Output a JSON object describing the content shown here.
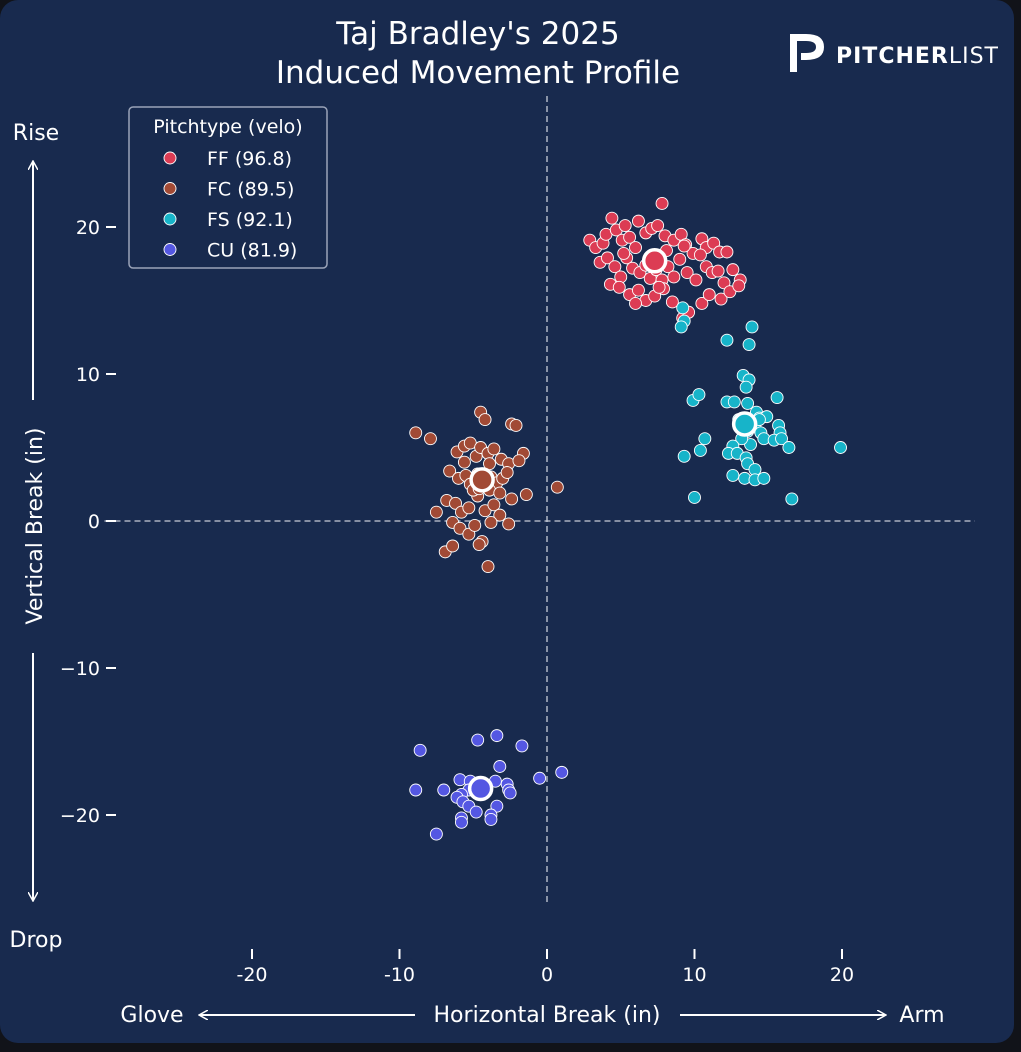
{
  "header": {
    "title_line1": "Taj Bradley's 2025",
    "title_line2": "Induced Movement Profile"
  },
  "logo": {
    "icon": "pitcherlist-p-icon",
    "text_bold": "PITCHER",
    "text_light": "LIST"
  },
  "colors": {
    "background": "#182a4e",
    "FF": "#dc3c54",
    "FC": "#a14a35",
    "FS": "#17b4c9",
    "CU": "#5457e2"
  },
  "chart_data": {
    "type": "scatter",
    "title": "Taj Bradley's 2025 Induced Movement Profile",
    "xlabel": "Horizontal Break (in)",
    "ylabel": "Vertical Break (in)",
    "x_left_word": "Glove",
    "x_right_word": "Arm",
    "y_top_word": "Rise",
    "y_bottom_word": "Drop",
    "xlim": [
      -30,
      29
    ],
    "ylim": [
      -26,
      28
    ],
    "x_ticks": [
      "-20",
      "-10",
      "0",
      "10",
      "20"
    ],
    "y_ticks": [
      "20",
      "10",
      "0",
      "−10",
      "−20"
    ],
    "reference_lines": {
      "x": 0,
      "y": 0,
      "style": "dashed"
    },
    "legend": {
      "title": "Pitchtype (velo)",
      "position": "top-left",
      "entries": [
        "FF (96.8)",
        "FC (89.5)",
        "FS (92.1)",
        "CU (81.9)"
      ]
    },
    "series": [
      {
        "name": "FF (96.8)",
        "pitch": "FF",
        "mean": [
          7.3,
          17.7
        ],
        "points": [
          [
            2.9,
            19.1
          ],
          [
            3.3,
            18.6
          ],
          [
            3.8,
            18.9
          ],
          [
            4.0,
            19.5
          ],
          [
            4.4,
            20.6
          ],
          [
            4.7,
            19.8
          ],
          [
            5.1,
            19.1
          ],
          [
            5.3,
            20.1
          ],
          [
            5.6,
            19.3
          ],
          [
            6.2,
            20.4
          ],
          [
            6.7,
            19.6
          ],
          [
            7.1,
            19.9
          ],
          [
            7.5,
            20.1
          ],
          [
            7.8,
            21.6
          ],
          [
            8.0,
            19.4
          ],
          [
            8.6,
            19.1
          ],
          [
            9.1,
            19.5
          ],
          [
            9.4,
            18.8
          ],
          [
            9.9,
            18.2
          ],
          [
            10.5,
            19.2
          ],
          [
            10.8,
            18.6
          ],
          [
            11.3,
            18.9
          ],
          [
            11.7,
            18.3
          ],
          [
            3.6,
            17.6
          ],
          [
            4.1,
            17.9
          ],
          [
            4.6,
            17.3
          ],
          [
            5.0,
            16.6
          ],
          [
            5.4,
            17.9
          ],
          [
            5.8,
            17.2
          ],
          [
            6.3,
            16.9
          ],
          [
            6.7,
            17.4
          ],
          [
            7.0,
            16.5
          ],
          [
            7.4,
            17.1
          ],
          [
            7.8,
            16.4
          ],
          [
            8.2,
            17.3
          ],
          [
            8.6,
            16.6
          ],
          [
            9.0,
            17.8
          ],
          [
            9.5,
            16.9
          ],
          [
            10.1,
            16.4
          ],
          [
            10.8,
            17.3
          ],
          [
            11.2,
            16.9
          ],
          [
            12.0,
            16.2
          ],
          [
            12.6,
            17.1
          ],
          [
            13.1,
            16.4
          ],
          [
            4.3,
            16.1
          ],
          [
            4.9,
            15.9
          ],
          [
            5.6,
            15.4
          ],
          [
            6.2,
            15.7
          ],
          [
            6.7,
            15.0
          ],
          [
            7.3,
            15.3
          ],
          [
            7.9,
            15.8
          ],
          [
            8.5,
            14.9
          ],
          [
            9.2,
            13.8
          ],
          [
            9.6,
            14.2
          ],
          [
            10.5,
            14.8
          ],
          [
            11.0,
            15.4
          ],
          [
            11.8,
            15.1
          ],
          [
            12.4,
            15.6
          ],
          [
            13.0,
            16.0
          ],
          [
            6.0,
            14.8
          ],
          [
            7.6,
            15.9
          ],
          [
            8.1,
            18.4
          ],
          [
            9.3,
            18.7
          ],
          [
            10.4,
            18.1
          ],
          [
            11.6,
            17.0
          ],
          [
            12.2,
            18.3
          ],
          [
            5.2,
            18.2
          ],
          [
            6.0,
            18.6
          ]
        ]
      },
      {
        "name": "FC (89.5)",
        "pitch": "FC",
        "mean": [
          -4.4,
          2.8
        ],
        "points": [
          [
            -8.9,
            6.0
          ],
          [
            -7.9,
            5.6
          ],
          [
            -4.5,
            7.4
          ],
          [
            -4.2,
            6.9
          ],
          [
            -2.4,
            6.6
          ],
          [
            -2.1,
            6.5
          ],
          [
            -6.1,
            4.7
          ],
          [
            -5.6,
            5.1
          ],
          [
            -5.2,
            5.3
          ],
          [
            -4.8,
            4.4
          ],
          [
            -4.5,
            5.0
          ],
          [
            -4.0,
            4.6
          ],
          [
            -3.6,
            4.9
          ],
          [
            -3.1,
            4.2
          ],
          [
            -2.6,
            3.9
          ],
          [
            -1.6,
            4.6
          ],
          [
            -1.9,
            4.1
          ],
          [
            -6.6,
            3.4
          ],
          [
            -6.0,
            2.9
          ],
          [
            -5.5,
            3.1
          ],
          [
            -5.2,
            2.5
          ],
          [
            -4.7,
            3.2
          ],
          [
            -4.2,
            2.6
          ],
          [
            -3.8,
            3.0
          ],
          [
            -3.4,
            2.6
          ],
          [
            -3.0,
            2.9
          ],
          [
            -2.7,
            3.3
          ],
          [
            -6.8,
            1.4
          ],
          [
            -6.2,
            1.2
          ],
          [
            -5.8,
            0.6
          ],
          [
            -5.3,
            0.9
          ],
          [
            -4.7,
            1.7
          ],
          [
            -4.2,
            0.7
          ],
          [
            -3.6,
            1.1
          ],
          [
            -3.2,
            0.4
          ],
          [
            -2.4,
            1.5
          ],
          [
            -1.4,
            1.8
          ],
          [
            -7.5,
            0.6
          ],
          [
            -6.4,
            -0.1
          ],
          [
            -5.9,
            -0.5
          ],
          [
            -5.3,
            -0.9
          ],
          [
            -4.9,
            -0.3
          ],
          [
            -4.4,
            -1.4
          ],
          [
            -3.8,
            -0.1
          ],
          [
            -2.6,
            -0.2
          ],
          [
            -6.9,
            -2.1
          ],
          [
            -6.4,
            -1.7
          ],
          [
            -4.6,
            -1.6
          ],
          [
            -4.0,
            -3.1
          ],
          [
            0.7,
            2.3
          ],
          [
            -5.0,
            2.1
          ],
          [
            -3.9,
            2.1
          ],
          [
            -3.2,
            1.9
          ],
          [
            -5.6,
            4.0
          ],
          [
            -3.9,
            3.9
          ],
          [
            -4.6,
            2.2
          ]
        ]
      },
      {
        "name": "FS (92.1)",
        "pitch": "FS",
        "mean": [
          13.4,
          6.6
        ],
        "points": [
          [
            9.2,
            14.5
          ],
          [
            9.3,
            13.6
          ],
          [
            9.1,
            13.2
          ],
          [
            12.2,
            12.3
          ],
          [
            13.9,
            13.2
          ],
          [
            13.7,
            12.0
          ],
          [
            13.3,
            9.9
          ],
          [
            13.7,
            9.6
          ],
          [
            13.5,
            9.1
          ],
          [
            9.9,
            8.2
          ],
          [
            10.3,
            8.6
          ],
          [
            12.2,
            8.1
          ],
          [
            12.7,
            8.1
          ],
          [
            13.6,
            8.0
          ],
          [
            14.2,
            7.4
          ],
          [
            14.4,
            7.0
          ],
          [
            15.6,
            8.4
          ],
          [
            14.9,
            7.1
          ],
          [
            15.7,
            6.5
          ],
          [
            15.8,
            6.0
          ],
          [
            14.1,
            6.4
          ],
          [
            13.6,
            6.1
          ],
          [
            14.5,
            6.0
          ],
          [
            14.7,
            5.6
          ],
          [
            15.4,
            5.5
          ],
          [
            15.9,
            5.6
          ],
          [
            16.4,
            5.0
          ],
          [
            13.8,
            5.2
          ],
          [
            13.2,
            5.6
          ],
          [
            12.6,
            5.1
          ],
          [
            12.3,
            4.6
          ],
          [
            12.9,
            4.6
          ],
          [
            13.5,
            4.3
          ],
          [
            10.7,
            5.6
          ],
          [
            10.4,
            4.8
          ],
          [
            9.3,
            4.4
          ],
          [
            13.6,
            3.9
          ],
          [
            14.1,
            3.5
          ],
          [
            12.6,
            3.1
          ],
          [
            13.4,
            2.9
          ],
          [
            14.1,
            2.8
          ],
          [
            14.7,
            2.9
          ],
          [
            10.0,
            1.6
          ],
          [
            16.6,
            1.5
          ],
          [
            19.9,
            5.0
          ],
          [
            14.4,
            6.9
          ],
          [
            13.0,
            6.9
          ]
        ]
      },
      {
        "name": "CU (81.9)",
        "pitch": "CU",
        "mean": [
          -4.5,
          -18.2
        ],
        "points": [
          [
            -8.6,
            -15.6
          ],
          [
            -4.7,
            -14.9
          ],
          [
            -3.4,
            -14.6
          ],
          [
            -1.7,
            -15.3
          ],
          [
            -3.2,
            -16.7
          ],
          [
            -0.5,
            -17.5
          ],
          [
            1.0,
            -17.1
          ],
          [
            -5.9,
            -17.6
          ],
          [
            -5.2,
            -17.7
          ],
          [
            -3.5,
            -17.7
          ],
          [
            -2.7,
            -17.9
          ],
          [
            -8.9,
            -18.3
          ],
          [
            -7.0,
            -18.3
          ],
          [
            -5.3,
            -18.3
          ],
          [
            -5.8,
            -18.6
          ],
          [
            -2.6,
            -18.3
          ],
          [
            -2.5,
            -18.5
          ],
          [
            -6.1,
            -18.8
          ],
          [
            -5.7,
            -19.1
          ],
          [
            -5.3,
            -19.4
          ],
          [
            -3.4,
            -19.4
          ],
          [
            -4.8,
            -19.8
          ],
          [
            -3.8,
            -20.0
          ],
          [
            -5.8,
            -20.2
          ],
          [
            -5.8,
            -20.5
          ],
          [
            -3.8,
            -20.3
          ],
          [
            -7.5,
            -21.3
          ]
        ]
      }
    ]
  }
}
